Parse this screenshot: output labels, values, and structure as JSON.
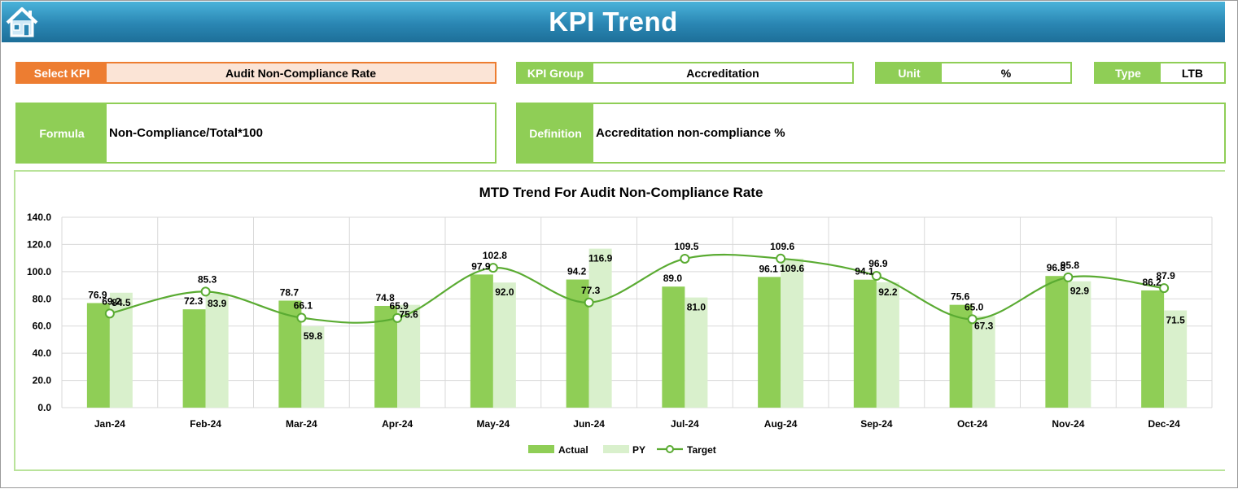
{
  "header": {
    "title": "KPI Trend",
    "home_icon": "home-icon"
  },
  "fields": {
    "select_kpi_label": "Select KPI",
    "select_kpi_value": "Audit Non-Compliance Rate",
    "kpi_group_label": "KPI Group",
    "kpi_group_value": "Accreditation",
    "unit_label": "Unit",
    "unit_value": "%",
    "type_label": "Type",
    "type_value": "LTB",
    "formula_label": "Formula",
    "formula_value": "Non-Compliance/Total*100",
    "definition_label": "Definition",
    "definition_value": "Accreditation non-compliance %"
  },
  "colors": {
    "actual": "#8fce56",
    "py": "#d9f0cc",
    "target": "#5aab32",
    "accent": "#ed7d31",
    "header": "#2a86b3"
  },
  "chart_data": {
    "type": "bar",
    "title": "MTD Trend For Audit Non-Compliance Rate",
    "categories": [
      "Jan-24",
      "Feb-24",
      "Mar-24",
      "Apr-24",
      "May-24",
      "Jun-24",
      "Jul-24",
      "Aug-24",
      "Sep-24",
      "Oct-24",
      "Nov-24",
      "Dec-24"
    ],
    "series": [
      {
        "name": "Actual",
        "kind": "bar",
        "values": [
          76.9,
          72.3,
          78.7,
          74.8,
          97.9,
          94.2,
          89.0,
          96.1,
          94.1,
          75.6,
          96.8,
          86.2
        ]
      },
      {
        "name": "PY",
        "kind": "bar",
        "values": [
          84.5,
          83.9,
          59.8,
          75.6,
          92.0,
          116.9,
          81.0,
          109.6,
          92.2,
          67.3,
          92.9,
          71.5
        ]
      },
      {
        "name": "Target",
        "kind": "line",
        "values": [
          69.2,
          85.3,
          66.1,
          65.9,
          102.8,
          77.3,
          109.5,
          109.6,
          96.9,
          65.0,
          95.8,
          87.9
        ]
      }
    ],
    "yticks": [
      "0.0",
      "20.0",
      "40.0",
      "60.0",
      "80.0",
      "100.0",
      "120.0",
      "140.0"
    ],
    "ylim": [
      0,
      140
    ],
    "grid": true,
    "legend": "bottom"
  }
}
